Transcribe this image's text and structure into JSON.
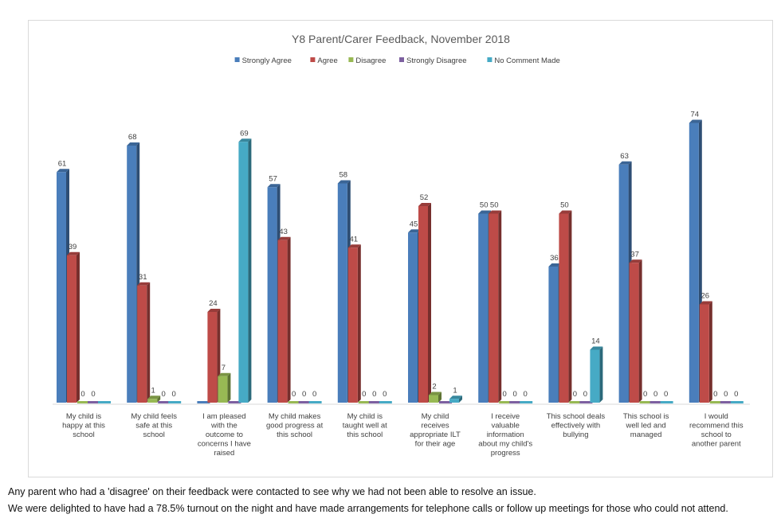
{
  "chart_data": {
    "type": "bar",
    "title": "Y8 Parent/Carer Feedback, November 2018",
    "xlabel": "",
    "ylabel": "",
    "ylim": [
      0,
      80
    ],
    "grid": false,
    "legend_position": "top",
    "categories": [
      "My child is happy at this school",
      "My child feels safe at this school",
      "I am pleased with the outcome to concerns I have raised",
      "My child makes good progress at this school",
      "My child is taught well at this school",
      "My child receives appropriate ILT for their age",
      "I receive valuable information about my child's progress",
      "This school deals effectively with bullying",
      "This school is well led and managed",
      "I would recommend this school to another parent"
    ],
    "series": [
      {
        "name": "Strongly Agree",
        "color": "#4a7ebb",
        "values": [
          61,
          68,
          0,
          57,
          58,
          45,
          50,
          36,
          63,
          74
        ]
      },
      {
        "name": "Agree",
        "color": "#be4b48",
        "values": [
          39,
          31,
          24,
          43,
          41,
          52,
          50,
          50,
          37,
          26
        ]
      },
      {
        "name": "Disagree",
        "color": "#98b954",
        "values": [
          0,
          1,
          7,
          0,
          0,
          2,
          0,
          0,
          0,
          0
        ]
      },
      {
        "name": "Strongly Disagree",
        "color": "#7d60a0",
        "values": [
          0,
          0,
          0,
          0,
          0,
          0,
          0,
          0,
          0,
          0
        ]
      },
      {
        "name": "No Comment Made",
        "color": "#46aac5",
        "values": [
          0,
          0,
          69,
          0,
          0,
          1,
          0,
          14,
          0,
          0
        ]
      }
    ],
    "category_label_lines": [
      [
        "My child is",
        "happy at this",
        "school"
      ],
      [
        "My child feels",
        "safe at this",
        "school"
      ],
      [
        "I am pleased",
        "with the",
        "outcome to",
        "concerns I have",
        "raised"
      ],
      [
        "My child makes",
        "good progress at",
        "this school"
      ],
      [
        "My child is",
        "taught well at",
        "this school"
      ],
      [
        "My child",
        "receives",
        "appropriate ILT",
        "for their age"
      ],
      [
        "I receive",
        "valuable",
        "information",
        "about my child's",
        "progress"
      ],
      [
        "This school deals",
        "effectively with",
        "bullying"
      ],
      [
        "This school is",
        "well led and",
        "managed"
      ],
      [
        "I would",
        "recommend this",
        "school to",
        "another parent"
      ]
    ],
    "data_labels_shown": [
      [
        true,
        true,
        true,
        true,
        false
      ],
      [
        true,
        true,
        true,
        true,
        true
      ],
      [
        false,
        true,
        true,
        false,
        true
      ],
      [
        true,
        true,
        true,
        true,
        true
      ],
      [
        true,
        true,
        true,
        true,
        true
      ],
      [
        true,
        true,
        true,
        false,
        true
      ],
      [
        true,
        true,
        true,
        true,
        true
      ],
      [
        true,
        true,
        true,
        true,
        true
      ],
      [
        true,
        true,
        true,
        true,
        true
      ],
      [
        true,
        true,
        true,
        true,
        true
      ]
    ]
  },
  "notes": {
    "line1": "Any parent who had a 'disagree' on their feedback were contacted to see why we had not been able to resolve an issue.",
    "line2": "We were delighted to have had a 78.5% turnout on the night and have made arrangements for telephone calls or follow up meetings for those who could not attend."
  }
}
